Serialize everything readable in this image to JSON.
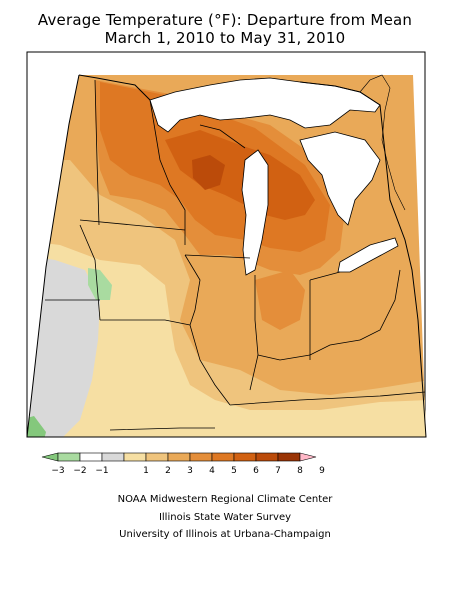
{
  "title_line_1": "Average Temperature (°F): Departure from Mean",
  "title_line_2": "March 1, 2010 to May 31, 2010",
  "legend": {
    "labels": [
      "−3",
      "−2",
      "−1",
      "1",
      "2",
      "3",
      "4",
      "5",
      "6",
      "7",
      "8",
      "9"
    ],
    "colors": [
      "#84c87c",
      "#a9dba0",
      "#ffffff",
      "#d9d9d9",
      "#f6dfa3",
      "#efc47d",
      "#e9a958",
      "#e48e3a",
      "#de7823",
      "#d16112",
      "#bb4b0a",
      "#9a3405",
      "#ffb8c8"
    ]
  },
  "map_colors": {
    "gray": "#d9d9d9",
    "light_green": "#a9dba0",
    "green": "#84c87c",
    "band_1_2": "#f6dfa3",
    "band_2_3": "#efc47d",
    "band_3_4": "#e9a958",
    "band_4_5": "#e48e3a",
    "band_5_6": "#de7823",
    "band_6_7": "#d16112",
    "band_7_8": "#bb4b0a"
  },
  "credits": {
    "line1": "NOAA Midwestern Regional Climate Center",
    "line2": "Illinois State Water Survey",
    "line3": "University of Illinois at Urbana-Champaign"
  }
}
